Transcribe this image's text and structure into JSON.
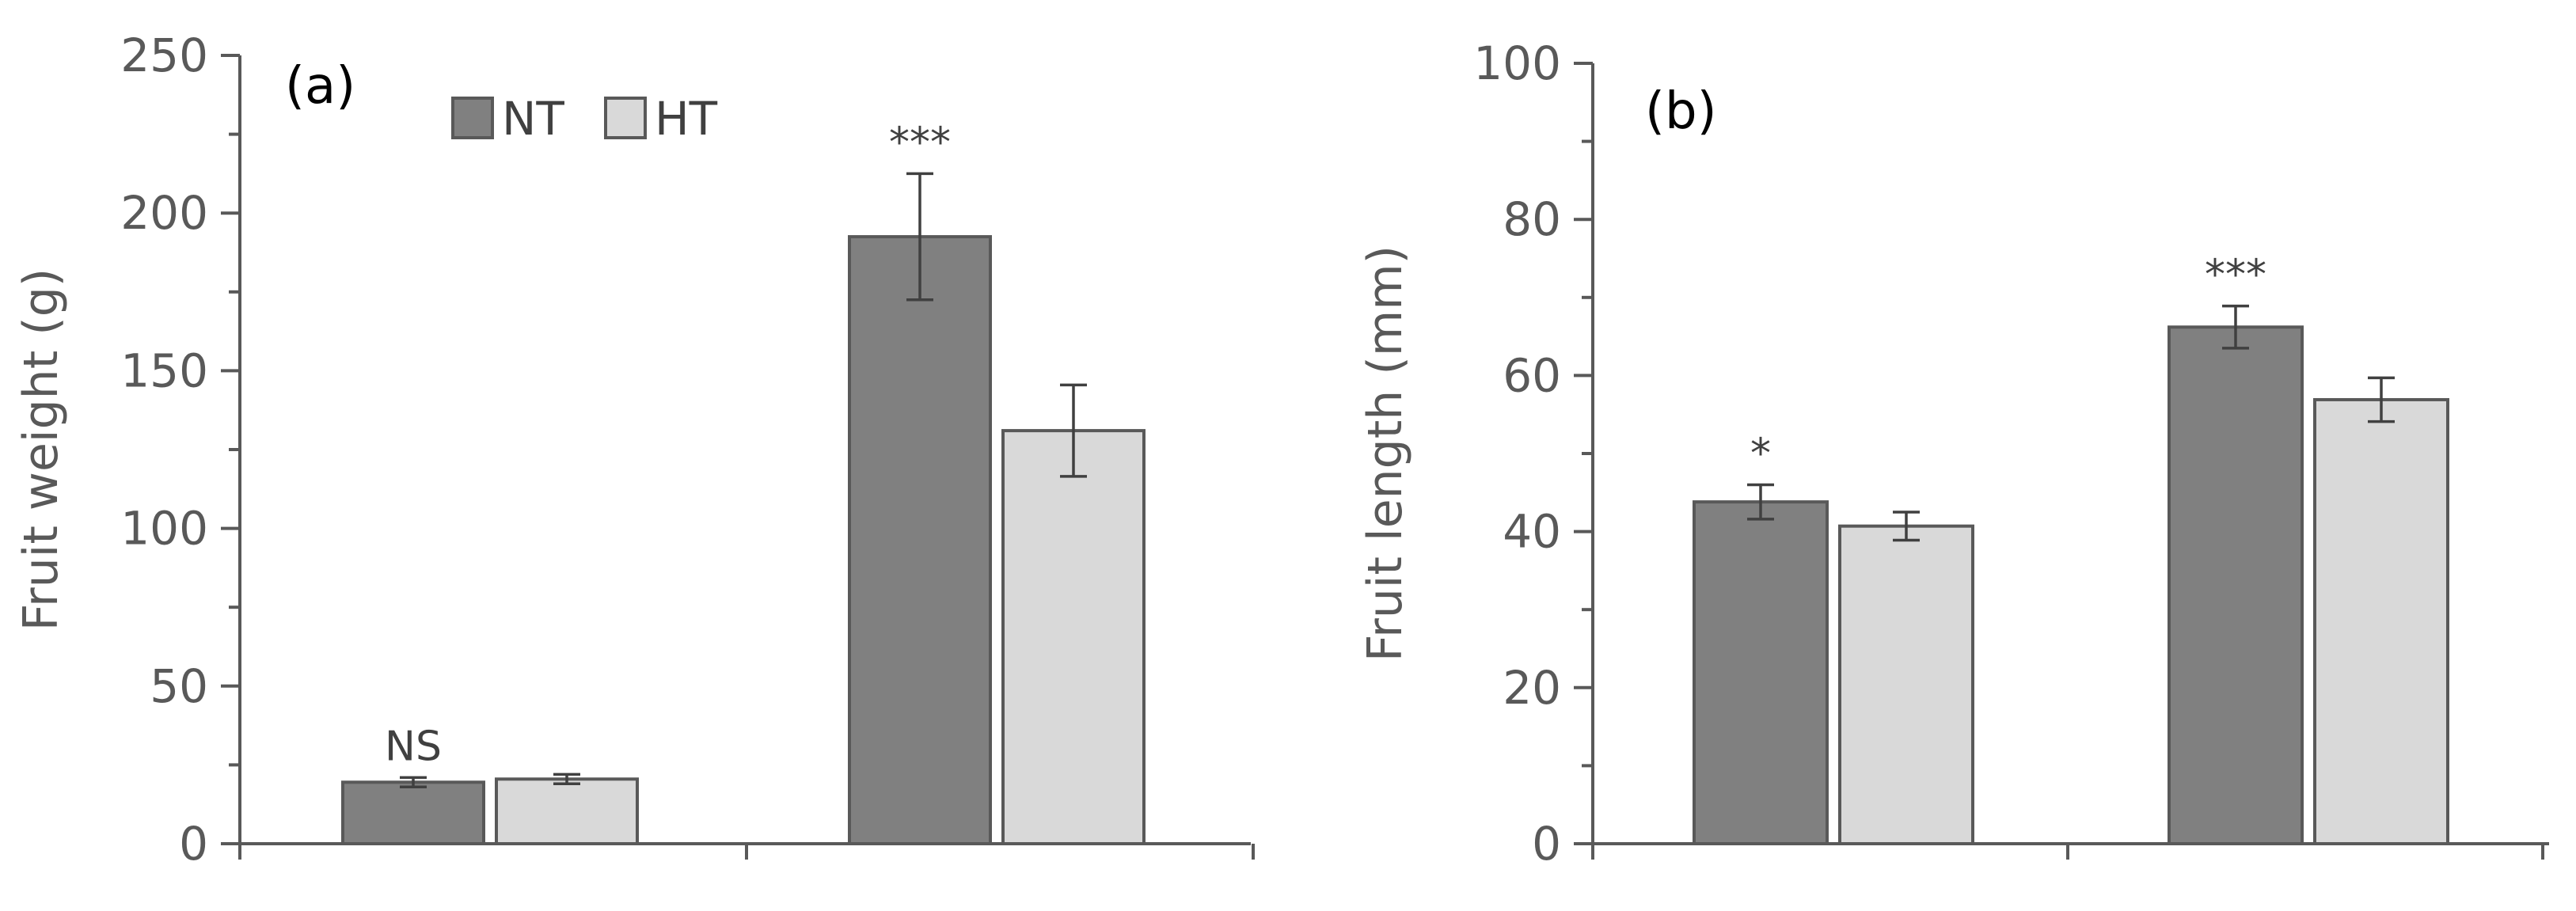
{
  "colors": {
    "NT": "#808080",
    "HT": "#d9d9d9"
  },
  "legend": [
    {
      "key": "NT",
      "label": "NT"
    },
    {
      "key": "HT",
      "label": "HT"
    }
  ],
  "chart_data": [
    {
      "type": "bar",
      "panel_label": "(a)",
      "title": "",
      "xlabel": "",
      "ylabel": "Fruit  weight (g)",
      "ylim": [
        0,
        250
      ],
      "yticks": [
        0,
        50,
        100,
        150,
        200,
        250
      ],
      "categories": [
        "",
        ""
      ],
      "series": [
        {
          "name": "NT",
          "values": [
            19.5,
            192.5
          ],
          "errors": [
            1.5,
            20
          ]
        },
        {
          "name": "HT",
          "values": [
            20.5,
            131
          ],
          "errors": [
            1.5,
            14.5
          ]
        }
      ],
      "significance": [
        "NS",
        "***"
      ]
    },
    {
      "type": "bar",
      "panel_label": "(b)",
      "title": "",
      "xlabel": "",
      "ylabel": "Fruit length (mm)",
      "ylim": [
        0,
        100
      ],
      "yticks": [
        0,
        20,
        40,
        60,
        80,
        100
      ],
      "categories": [
        "",
        ""
      ],
      "series": [
        {
          "name": "NT",
          "values": [
            43.8,
            66.2
          ],
          "errors": [
            2.2,
            2.7
          ]
        },
        {
          "name": "HT",
          "values": [
            40.7,
            56.9
          ],
          "errors": [
            1.8,
            2.8
          ]
        }
      ],
      "significance": [
        "*",
        "***"
      ]
    }
  ]
}
